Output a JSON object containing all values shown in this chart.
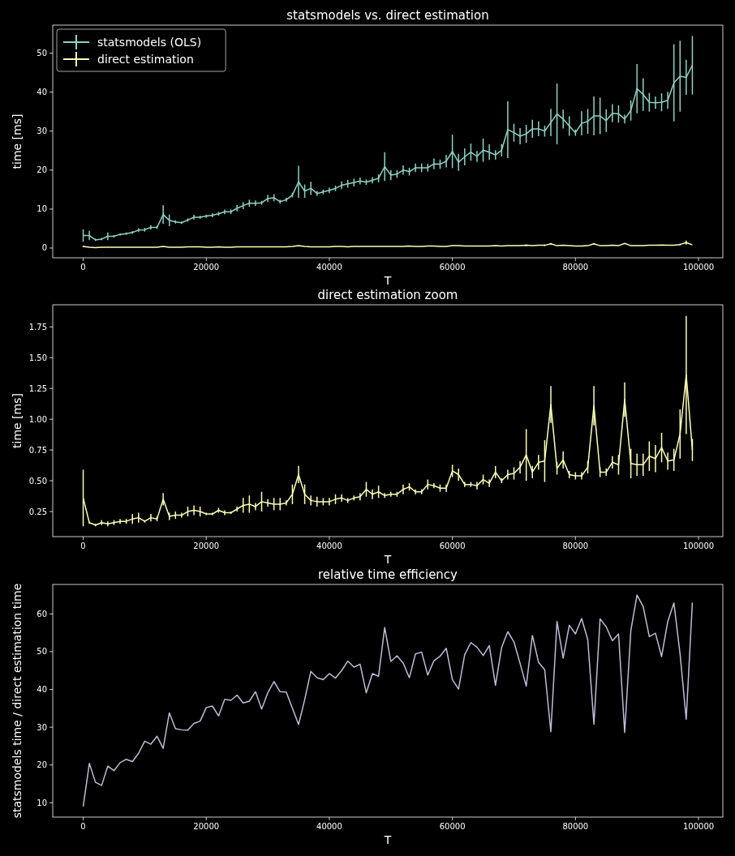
{
  "chart_data": [
    {
      "type": "line",
      "title": "statsmodels vs. direct estimation",
      "xlabel": "T",
      "ylabel": "time [ms]",
      "legend": "top left",
      "xlim": [
        -4950,
        103950
      ],
      "ylim": [
        -2.5,
        57.2
      ],
      "xticks": [
        0,
        20000,
        40000,
        60000,
        80000,
        100000
      ],
      "yticks": [
        0,
        10,
        20,
        30,
        40,
        50
      ],
      "x": [
        0,
        1000,
        2000,
        3000,
        4000,
        5000,
        6000,
        7000,
        8000,
        9000,
        10000,
        11000,
        12000,
        13000,
        14000,
        15000,
        16000,
        17000,
        18000,
        19000,
        20000,
        21000,
        22000,
        23000,
        24000,
        25000,
        26000,
        27000,
        28000,
        29000,
        30000,
        31000,
        32000,
        33000,
        34000,
        35000,
        36000,
        37000,
        38000,
        39000,
        40000,
        41000,
        42000,
        43000,
        44000,
        45000,
        46000,
        47000,
        48000,
        49000,
        50000,
        51000,
        52000,
        53000,
        54000,
        55000,
        56000,
        57000,
        58000,
        59000,
        60000,
        61000,
        62000,
        63000,
        64000,
        65000,
        66000,
        67000,
        68000,
        69000,
        70000,
        71000,
        72000,
        73000,
        74000,
        75000,
        76000,
        77000,
        78000,
        79000,
        80000,
        81000,
        82000,
        83000,
        84000,
        85000,
        86000,
        87000,
        88000,
        89000,
        90000,
        91000,
        92000,
        93000,
        94000,
        95000,
        96000,
        97000,
        98000,
        99000
      ],
      "series": [
        {
          "name": "statsmodels (OLS)",
          "color": "#8dd3c7",
          "values": [
            3.2,
            3.2,
            2.1,
            2.3,
            3.0,
            3.0,
            3.5,
            3.7,
            4.0,
            4.6,
            4.7,
            5.3,
            5.3,
            8.6,
            7.1,
            6.7,
            6.5,
            7.2,
            7.9,
            7.9,
            8.2,
            8.4,
            8.8,
            9.3,
            9.3,
            10.2,
            10.9,
            11.5,
            11.5,
            11.6,
            12.7,
            12.9,
            11.9,
            12.4,
            13.6,
            17.0,
            14.6,
            15.3,
            14.0,
            14.4,
            14.8,
            15.3,
            16.1,
            16.5,
            16.8,
            17.2,
            16.9,
            17.4,
            17.9,
            20.9,
            18.7,
            19.0,
            20.0,
            19.6,
            20.6,
            20.6,
            20.6,
            21.6,
            21.5,
            22.3,
            24.8,
            22.0,
            23.4,
            24.6,
            23.5,
            25.1,
            24.6,
            23.9,
            25.1,
            30.4,
            29.6,
            28.7,
            29.3,
            30.6,
            30.6,
            30.0,
            32.2,
            34.4,
            33.1,
            31.3,
            29.6,
            32.0,
            32.5,
            33.9,
            33.9,
            32.7,
            34.6,
            34.4,
            33.1,
            35.3,
            40.9,
            39.4,
            37.4,
            37.3,
            37.4,
            37.9,
            42.4,
            44.1,
            43.8,
            46.9
          ],
          "errors": [
            1.6,
            1.2,
            0.3,
            0.3,
            1.0,
            0.3,
            0.3,
            0.3,
            0.3,
            0.5,
            0.5,
            0.5,
            0.4,
            2.4,
            1.5,
            0.4,
            0.3,
            0.4,
            0.6,
            0.4,
            0.4,
            0.5,
            0.5,
            0.6,
            0.6,
            0.8,
            0.9,
            0.9,
            0.7,
            0.5,
            0.9,
            0.9,
            0.5,
            0.5,
            0.6,
            4.1,
            1.7,
            1.7,
            0.6,
            0.6,
            0.7,
            0.7,
            1.0,
            1.0,
            1.0,
            0.9,
            0.7,
            0.8,
            1.0,
            3.7,
            1.3,
            1.0,
            1.2,
            1.0,
            1.1,
            1.1,
            1.0,
            1.4,
            1.2,
            1.6,
            4.3,
            2.2,
            2.2,
            2.2,
            1.4,
            3.0,
            2.0,
            1.2,
            1.6,
            7.3,
            2.3,
            2.1,
            2.3,
            2.3,
            1.9,
            1.4,
            3.5,
            7.8,
            2.4,
            2.5,
            0.8,
            3.1,
            3.2,
            5.0,
            4.7,
            2.9,
            2.3,
            2.2,
            1.1,
            2.6,
            6.3,
            4.2,
            2.4,
            1.6,
            2.3,
            2.2,
            9.9,
            9.1,
            4.5,
            7.5
          ]
        },
        {
          "name": "direct estimation",
          "color": "#feffb3",
          "values": [
            0.4,
            0.2,
            0.1,
            0.2,
            0.2,
            0.2,
            0.2,
            0.2,
            0.2,
            0.2,
            0.2,
            0.2,
            0.2,
            0.4,
            0.2,
            0.2,
            0.2,
            0.3,
            0.3,
            0.3,
            0.2,
            0.2,
            0.3,
            0.2,
            0.2,
            0.3,
            0.3,
            0.3,
            0.3,
            0.3,
            0.3,
            0.3,
            0.3,
            0.3,
            0.4,
            0.6,
            0.4,
            0.3,
            0.3,
            0.3,
            0.3,
            0.4,
            0.4,
            0.3,
            0.4,
            0.4,
            0.4,
            0.4,
            0.4,
            0.4,
            0.4,
            0.4,
            0.4,
            0.5,
            0.4,
            0.4,
            0.5,
            0.5,
            0.4,
            0.4,
            0.6,
            0.6,
            0.5,
            0.5,
            0.5,
            0.5,
            0.5,
            0.6,
            0.5,
            0.6,
            0.6,
            0.6,
            0.7,
            0.6,
            0.7,
            0.7,
            1.1,
            0.6,
            0.7,
            0.6,
            0.5,
            0.5,
            0.6,
            1.1,
            0.6,
            0.6,
            0.7,
            0.6,
            1.2,
            0.6,
            0.6,
            0.6,
            0.7,
            0.7,
            0.8,
            0.7,
            0.7,
            0.9,
            1.4,
            0.8
          ],
          "errors": [
            0.2,
            null,
            null,
            null,
            null,
            null,
            null,
            null,
            null,
            null,
            null,
            null,
            null,
            null,
            null,
            null,
            null,
            null,
            null,
            null,
            null,
            null,
            null,
            null,
            null,
            null,
            null,
            null,
            null,
            null,
            null,
            null,
            null,
            null,
            null,
            null,
            null,
            null,
            null,
            null,
            null,
            null,
            null,
            null,
            null,
            null,
            null,
            null,
            null,
            null,
            null,
            null,
            null,
            null,
            null,
            null,
            null,
            null,
            null,
            null,
            null,
            null,
            null,
            null,
            null,
            null,
            null,
            null,
            null,
            null,
            null,
            null,
            0.2,
            null,
            null,
            0.2,
            0.2,
            null,
            null,
            null,
            null,
            null,
            null,
            0.2,
            null,
            null,
            null,
            null,
            null,
            null,
            null,
            null,
            null,
            null,
            null,
            null,
            null,
            0.2,
            0.5,
            null
          ]
        }
      ]
    },
    {
      "type": "line",
      "title": "direct estimation zoom",
      "xlabel": "T",
      "ylabel": "time [ms]",
      "xlim": [
        -4950,
        103950
      ],
      "ylim": [
        0.046,
        1.93
      ],
      "xticks": [
        0,
        20000,
        40000,
        60000,
        80000,
        100000
      ],
      "yticks": [
        0.25,
        {
          "value": 0.5,
          "label": "0.50"
        },
        0.75,
        {
          "value": 1,
          "label": "1.00"
        },
        1.25,
        {
          "value": 1.5,
          "label": "1.50"
        },
        1.75
      ],
      "x": [
        0,
        1000,
        2000,
        3000,
        4000,
        5000,
        6000,
        7000,
        8000,
        9000,
        10000,
        11000,
        12000,
        13000,
        14000,
        15000,
        16000,
        17000,
        18000,
        19000,
        20000,
        21000,
        22000,
        23000,
        24000,
        25000,
        26000,
        27000,
        28000,
        29000,
        30000,
        31000,
        32000,
        33000,
        34000,
        35000,
        36000,
        37000,
        38000,
        39000,
        40000,
        41000,
        42000,
        43000,
        44000,
        45000,
        46000,
        47000,
        48000,
        49000,
        50000,
        51000,
        52000,
        53000,
        54000,
        55000,
        56000,
        57000,
        58000,
        59000,
        60000,
        61000,
        62000,
        63000,
        64000,
        65000,
        66000,
        67000,
        68000,
        69000,
        70000,
        71000,
        72000,
        73000,
        74000,
        75000,
        76000,
        77000,
        78000,
        79000,
        80000,
        81000,
        82000,
        83000,
        84000,
        85000,
        86000,
        87000,
        88000,
        89000,
        90000,
        91000,
        92000,
        93000,
        94000,
        95000,
        96000,
        97000,
        98000,
        99000
      ],
      "series": [
        {
          "color": "#feffb3",
          "values": [
            0.36,
            0.16,
            0.14,
            0.16,
            0.15,
            0.16,
            0.17,
            0.17,
            0.19,
            0.2,
            0.17,
            0.2,
            0.19,
            0.35,
            0.21,
            0.22,
            0.22,
            0.25,
            0.26,
            0.25,
            0.23,
            0.23,
            0.26,
            0.24,
            0.24,
            0.27,
            0.3,
            0.31,
            0.29,
            0.33,
            0.32,
            0.31,
            0.31,
            0.32,
            0.39,
            0.55,
            0.39,
            0.34,
            0.33,
            0.33,
            0.33,
            0.35,
            0.36,
            0.34,
            0.36,
            0.37,
            0.43,
            0.39,
            0.41,
            0.38,
            0.39,
            0.39,
            0.43,
            0.45,
            0.41,
            0.41,
            0.47,
            0.46,
            0.44,
            0.44,
            0.58,
            0.55,
            0.47,
            0.47,
            0.46,
            0.51,
            0.48,
            0.57,
            0.5,
            0.55,
            0.56,
            0.61,
            0.71,
            0.57,
            0.65,
            0.66,
            1.12,
            0.6,
            0.67,
            0.55,
            0.54,
            0.54,
            0.61,
            1.11,
            0.57,
            0.57,
            0.65,
            0.63,
            1.16,
            0.64,
            0.63,
            0.63,
            0.7,
            0.68,
            0.77,
            0.66,
            0.67,
            0.88,
            1.36,
            0.75
          ],
          "errors": [
            0.23,
            0.01,
            0.01,
            0.02,
            0.02,
            0.02,
            0.02,
            0.02,
            0.04,
            0.04,
            0.01,
            0.03,
            0.02,
            0.05,
            0.03,
            0.03,
            0.02,
            0.04,
            0.04,
            0.04,
            0.01,
            0.01,
            0.02,
            0.02,
            0.01,
            0.02,
            0.06,
            0.07,
            0.03,
            0.08,
            0.03,
            0.05,
            0.05,
            0.02,
            0.08,
            0.07,
            0.08,
            0.04,
            0.04,
            0.03,
            0.03,
            0.04,
            0.03,
            0.02,
            0.02,
            0.03,
            0.06,
            0.04,
            0.05,
            0.02,
            0.02,
            0.02,
            0.04,
            0.03,
            0.02,
            0.02,
            0.04,
            0.02,
            0.03,
            0.03,
            0.05,
            0.05,
            0.02,
            0.02,
            0.03,
            0.04,
            0.03,
            0.05,
            0.02,
            0.04,
            0.05,
            0.05,
            0.21,
            0.05,
            0.06,
            0.17,
            0.15,
            0.05,
            0.07,
            0.03,
            0.03,
            0.03,
            0.05,
            0.16,
            0.04,
            0.03,
            0.05,
            0.08,
            0.14,
            0.12,
            0.09,
            0.09,
            0.12,
            0.11,
            0.12,
            0.07,
            0.09,
            0.2,
            0.48,
            0.09
          ]
        }
      ]
    },
    {
      "type": "line",
      "title": "relative time efficiency",
      "xlabel": "T",
      "ylabel": "statsmodels time / direct estimation time",
      "xlim": [
        -4950,
        103950
      ],
      "ylim": [
        6.2,
        67.8
      ],
      "xticks": [
        0,
        20000,
        40000,
        60000,
        80000,
        100000
      ],
      "yticks": [
        10,
        20,
        30,
        40,
        50,
        60
      ],
      "x": [
        0,
        1000,
        2000,
        3000,
        4000,
        5000,
        6000,
        7000,
        8000,
        9000,
        10000,
        11000,
        12000,
        13000,
        14000,
        15000,
        16000,
        17000,
        18000,
        19000,
        20000,
        21000,
        22000,
        23000,
        24000,
        25000,
        26000,
        27000,
        28000,
        29000,
        30000,
        31000,
        32000,
        33000,
        34000,
        35000,
        36000,
        37000,
        38000,
        39000,
        40000,
        41000,
        42000,
        43000,
        44000,
        45000,
        46000,
        47000,
        48000,
        49000,
        50000,
        51000,
        52000,
        53000,
        54000,
        55000,
        56000,
        57000,
        58000,
        59000,
        60000,
        61000,
        62000,
        63000,
        64000,
        65000,
        66000,
        67000,
        68000,
        69000,
        70000,
        71000,
        72000,
        73000,
        74000,
        75000,
        76000,
        77000,
        78000,
        79000,
        80000,
        81000,
        82000,
        83000,
        84000,
        85000,
        86000,
        87000,
        88000,
        89000,
        90000,
        91000,
        92000,
        93000,
        94000,
        95000,
        96000,
        97000,
        98000,
        99000
      ],
      "series": [
        {
          "color": "#bfbbd9",
          "values": [
            9.0,
            20.4,
            15.4,
            14.6,
            19.7,
            18.5,
            20.6,
            21.5,
            20.9,
            23.1,
            26.3,
            25.5,
            27.6,
            24.4,
            33.8,
            29.6,
            29.3,
            29.2,
            31.0,
            31.6,
            35.2,
            35.6,
            33.0,
            37.4,
            37.1,
            38.5,
            36.4,
            36.9,
            39.4,
            34.8,
            39.1,
            42.1,
            39.4,
            39.3,
            35.0,
            30.7,
            37.3,
            44.8,
            43.1,
            42.6,
            44.2,
            43.0,
            45.0,
            47.5,
            45.9,
            46.7,
            39.1,
            44.2,
            43.5,
            56.4,
            47.4,
            48.9,
            47.0,
            43.1,
            49.4,
            49.9,
            43.8,
            47.6,
            48.8,
            50.9,
            42.6,
            40.1,
            49.2,
            52.4,
            51.2,
            49.0,
            51.6,
            41.1,
            51.1,
            55.3,
            52.6,
            46.9,
            40.9,
            54.3,
            47.2,
            45.2,
            28.8,
            58.0,
            48.3,
            57.0,
            54.7,
            58.8,
            53.2,
            30.8,
            58.7,
            56.6,
            52.9,
            54.7,
            28.6,
            55.6,
            65.0,
            62.0,
            54.0,
            54.9,
            48.7,
            58.0,
            62.9,
            49.4,
            32.1,
            63.0
          ]
        }
      ]
    }
  ]
}
